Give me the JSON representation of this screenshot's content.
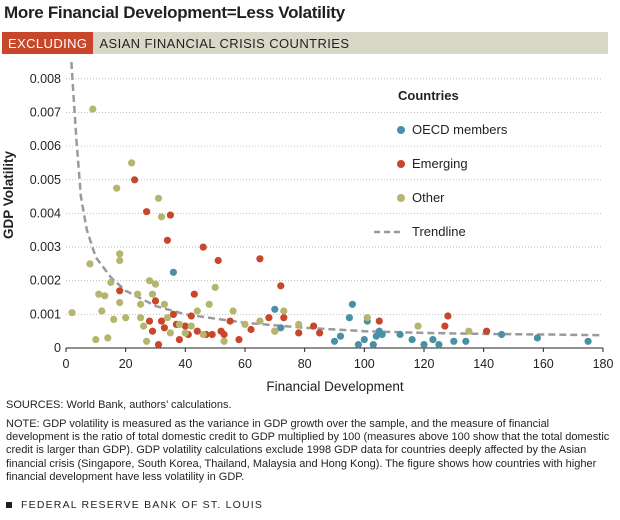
{
  "header": {
    "title": "More Financial Development=Less Volatility",
    "banner_tag": "EXCLUDING",
    "banner_text": "ASIAN FINANCIAL CRISIS COUNTRIES"
  },
  "colors": {
    "oecd": "#4a90a4",
    "emerging": "#c8472b",
    "other": "#b5b56e",
    "trendline": "#9a9a9a",
    "banner_tag_bg": "#c8472b",
    "banner_bg": "#d8d8c8"
  },
  "chart_data": {
    "type": "scatter",
    "xlabel": "Financial Development",
    "ylabel": "GDP Volatility",
    "xlim": [
      0,
      180
    ],
    "ylim": [
      0,
      0.0085
    ],
    "xticks": [
      0,
      20,
      40,
      60,
      80,
      100,
      120,
      140,
      160,
      180
    ],
    "yticks": [
      0,
      0.001,
      0.002,
      0.003,
      0.004,
      0.005,
      0.006,
      0.007,
      0.008
    ],
    "ytick_labels": [
      "0",
      "0.001",
      "0.002",
      "0.003",
      "0.004",
      "0.005",
      "0.006",
      "0.007",
      "0.008"
    ],
    "legend_title": "Countries",
    "legend_position": "top-right",
    "series": [
      {
        "name": "OECD members",
        "color_key": "oecd",
        "points": [
          [
            36,
            0.00225
          ],
          [
            70,
            0.00115
          ],
          [
            72,
            0.0006
          ],
          [
            90,
            0.0002
          ],
          [
            92,
            0.00035
          ],
          [
            95,
            0.0009
          ],
          [
            96,
            0.0013
          ],
          [
            98,
            0.0001
          ],
          [
            100,
            0.00025
          ],
          [
            101,
            0.0008
          ],
          [
            103,
            0.0001
          ],
          [
            104,
            0.00035
          ],
          [
            105,
            0.0005
          ],
          [
            106,
            0.0004
          ],
          [
            112,
            0.0004
          ],
          [
            116,
            0.00025
          ],
          [
            120,
            0.0001
          ],
          [
            123,
            0.00025
          ],
          [
            125,
            0.0001
          ],
          [
            130,
            0.0002
          ],
          [
            134,
            0.0002
          ],
          [
            146,
            0.0004
          ],
          [
            158,
            0.0003
          ],
          [
            175,
            0.0002
          ]
        ]
      },
      {
        "name": "Emerging",
        "color_key": "emerging",
        "points": [
          [
            18,
            0.0017
          ],
          [
            23,
            0.005
          ],
          [
            27,
            0.00405
          ],
          [
            28,
            0.0008
          ],
          [
            29,
            0.0005
          ],
          [
            30,
            0.0014
          ],
          [
            31,
            0.0001
          ],
          [
            32,
            0.0008
          ],
          [
            33,
            0.0006
          ],
          [
            34,
            0.0032
          ],
          [
            35,
            0.00395
          ],
          [
            36,
            0.001
          ],
          [
            37,
            0.0007
          ],
          [
            38,
            0.00025
          ],
          [
            40,
            0.00065
          ],
          [
            41,
            0.0004
          ],
          [
            42,
            0.00095
          ],
          [
            43,
            0.0016
          ],
          [
            44,
            0.0005
          ],
          [
            46,
            0.003
          ],
          [
            47,
            0.0004
          ],
          [
            49,
            0.0004
          ],
          [
            51,
            0.0026
          ],
          [
            52,
            0.0005
          ],
          [
            53,
            0.0004
          ],
          [
            55,
            0.0008
          ],
          [
            58,
            0.00025
          ],
          [
            62,
            0.00055
          ],
          [
            65,
            0.00265
          ],
          [
            68,
            0.0009
          ],
          [
            70,
            0.0005
          ],
          [
            72,
            0.00185
          ],
          [
            73,
            0.0009
          ],
          [
            78,
            0.00045
          ],
          [
            83,
            0.00065
          ],
          [
            85,
            0.00045
          ],
          [
            105,
            0.0008
          ],
          [
            127,
            0.00065
          ],
          [
            128,
            0.00095
          ],
          [
            141,
            0.0005
          ]
        ]
      },
      {
        "name": "Other",
        "color_key": "other",
        "points": [
          [
            2,
            0.00105
          ],
          [
            8,
            0.0025
          ],
          [
            9,
            0.0071
          ],
          [
            10,
            0.00025
          ],
          [
            11,
            0.0016
          ],
          [
            12,
            0.0011
          ],
          [
            13,
            0.00155
          ],
          [
            14,
            0.0003
          ],
          [
            15,
            0.00195
          ],
          [
            16,
            0.00085
          ],
          [
            17,
            0.00475
          ],
          [
            18,
            0.0028
          ],
          [
            18,
            0.0026
          ],
          [
            18,
            0.00135
          ],
          [
            20,
            0.0009
          ],
          [
            22,
            0.0055
          ],
          [
            24,
            0.0016
          ],
          [
            25,
            0.0013
          ],
          [
            25,
            0.0009
          ],
          [
            26,
            0.00065
          ],
          [
            27,
            0.0002
          ],
          [
            28,
            0.002
          ],
          [
            29,
            0.0016
          ],
          [
            30,
            0.0019
          ],
          [
            31,
            0.00445
          ],
          [
            32,
            0.0039
          ],
          [
            33,
            0.0013
          ],
          [
            34,
            0.0009
          ],
          [
            35,
            0.00045
          ],
          [
            38,
            0.0007
          ],
          [
            40,
            0.00045
          ],
          [
            42,
            0.00065
          ],
          [
            44,
            0.0011
          ],
          [
            46,
            0.0004
          ],
          [
            48,
            0.0013
          ],
          [
            50,
            0.0018
          ],
          [
            53,
            0.0002
          ],
          [
            56,
            0.0011
          ],
          [
            60,
            0.0007
          ],
          [
            65,
            0.0008
          ],
          [
            70,
            0.0005
          ],
          [
            73,
            0.0011
          ],
          [
            78,
            0.0007
          ],
          [
            101,
            0.0009
          ],
          [
            118,
            0.00065
          ],
          [
            135,
            0.0005
          ]
        ]
      }
    ],
    "trendline": {
      "name": "Trendline",
      "points": [
        [
          1.8,
          0.0085
        ],
        [
          2.5,
          0.0075
        ],
        [
          3.5,
          0.0062
        ],
        [
          5,
          0.0045
        ],
        [
          7,
          0.0035
        ],
        [
          10,
          0.0027
        ],
        [
          15,
          0.0021
        ],
        [
          20,
          0.0017
        ],
        [
          30,
          0.00125
        ],
        [
          40,
          0.001
        ],
        [
          60,
          0.00075
        ],
        [
          80,
          0.0006
        ],
        [
          100,
          0.0005
        ],
        [
          120,
          0.00045
        ],
        [
          140,
          0.00042
        ],
        [
          160,
          0.0004
        ],
        [
          180,
          0.00038
        ]
      ]
    }
  },
  "footer": {
    "sources": "SOURCES: World Bank, authors’ calculations.",
    "note": "NOTE: GDP volatility is measured as the variance in GDP growth over the sample, and the measure of financial development is the ratio of total domestic credit to GDP multiplied by 100 (measures above 100 show that the total domestic credit is larger than GDP). GDP volatility calculations exclude 1998 GDP data for countries deeply affected by the Asian financial crisis (Singapore, South Korea, Thailand, Malaysia and Hong Kong). The figure shows how countries with higher financial development have less volatility in GDP.",
    "credit": "FEDERAL RESERVE BANK OF ST. LOUIS"
  }
}
